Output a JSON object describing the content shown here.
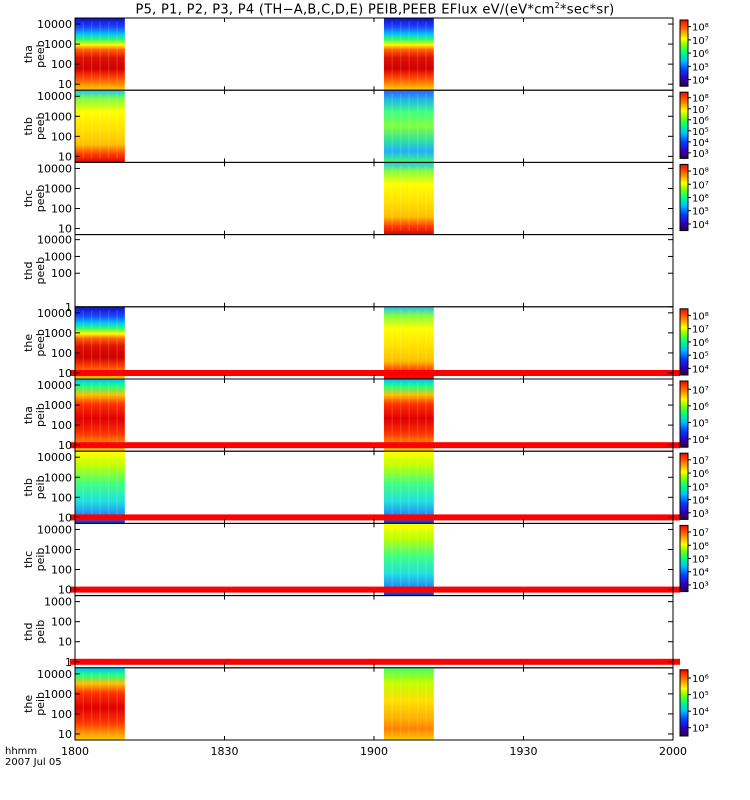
{
  "title_prefix": "P5, P1, P2, P3, P4 (TH−A,B,C,D,E) PEIB,PEEB EFlux eV/(eV*cm",
  "title_sup": "2",
  "title_suffix": "*sec*sr)",
  "xaxis": {
    "corner_label": "hhmm",
    "date": "2007 Jul 05",
    "tick_labels": [
      "1800",
      "1830",
      "1900",
      "1930",
      "2000"
    ]
  },
  "chart_data": {
    "type": "heatmap",
    "x_range_minutes": [
      0,
      120
    ],
    "x_ticks_minutes": [
      0,
      30,
      60,
      90,
      120
    ],
    "panels": [
      {
        "probe": "tha",
        "product": "peeb",
        "yticks": [
          "10000",
          "1000",
          "100",
          "10"
        ],
        "yrange": [
          5,
          20000
        ],
        "colorbar": {
          "ticks": [
            "10⁴",
            "10⁵",
            "10⁶",
            "10⁷",
            "10⁸"
          ]
        },
        "blocks": [
          {
            "x0": 0,
            "x1": 10,
            "scheme": "e_red"
          },
          {
            "x0": 62,
            "x1": 72,
            "scheme": "e_red"
          }
        ],
        "flag_bar": false
      },
      {
        "probe": "thb",
        "product": "peeb",
        "yticks": [
          "10000",
          "1000",
          "100",
          "10"
        ],
        "yrange": [
          5,
          20000
        ],
        "colorbar": {
          "ticks": [
            "10³",
            "10⁴",
            "10⁵",
            "10⁶",
            "10⁷",
            "10⁸"
          ]
        },
        "blocks": [
          {
            "x0": 0,
            "x1": 10,
            "scheme": "e_yellow"
          },
          {
            "x0": 62,
            "x1": 72,
            "scheme": "e_green"
          }
        ],
        "flag_bar": false
      },
      {
        "probe": "thc",
        "product": "peeb",
        "yticks": [
          "10000",
          "1000",
          "100",
          "10"
        ],
        "yrange": [
          5,
          20000
        ],
        "colorbar": {
          "ticks": [
            "10⁴",
            "10⁵",
            "10⁶",
            "10⁷",
            "10⁸"
          ]
        },
        "blocks": [
          {
            "x0": 62,
            "x1": 72,
            "scheme": "e_yellow"
          }
        ],
        "flag_bar": false
      },
      {
        "probe": "thd",
        "product": "peeb",
        "yticks": [
          "10000",
          "1000",
          "100",
          "1"
        ],
        "yrange": [
          1,
          20000
        ],
        "colorbar": null,
        "blocks": [],
        "flag_bar": false
      },
      {
        "probe": "the",
        "product": "peeb",
        "yticks": [
          "10000",
          "1000",
          "100",
          "10"
        ],
        "yrange": [
          5,
          20000
        ],
        "colorbar": {
          "ticks": [
            "10⁴",
            "10⁵",
            "10⁶",
            "10⁷",
            "10⁸"
          ]
        },
        "blocks": [
          {
            "x0": 0,
            "x1": 10,
            "scheme": "e_red"
          },
          {
            "x0": 62,
            "x1": 72,
            "scheme": "e_yellow"
          }
        ],
        "flag_bar": true
      },
      {
        "probe": "tha",
        "product": "peib",
        "yticks": [
          "10000",
          "1000",
          "100",
          "10"
        ],
        "yrange": [
          5,
          20000
        ],
        "colorbar": {
          "ticks": [
            "10⁴",
            "10⁵",
            "10⁶",
            "10⁷"
          ]
        },
        "blocks": [
          {
            "x0": 0,
            "x1": 10,
            "scheme": "i_red"
          },
          {
            "x0": 62,
            "x1": 72,
            "scheme": "i_red"
          }
        ],
        "flag_bar": true
      },
      {
        "probe": "thb",
        "product": "peib",
        "yticks": [
          "10000",
          "1000",
          "100",
          "10"
        ],
        "yrange": [
          5,
          20000
        ],
        "colorbar": {
          "ticks": [
            "10³",
            "10⁴",
            "10⁵",
            "10⁶",
            "10⁷"
          ]
        },
        "blocks": [
          {
            "x0": 0,
            "x1": 10,
            "scheme": "i_green"
          },
          {
            "x0": 62,
            "x1": 72,
            "scheme": "i_green"
          }
        ],
        "flag_bar": true
      },
      {
        "probe": "thc",
        "product": "peib",
        "yticks": [
          "10000",
          "1000",
          "100",
          "10"
        ],
        "yrange": [
          5,
          20000
        ],
        "colorbar": {
          "ticks": [
            "10³",
            "10⁴",
            "10⁵",
            "10⁶",
            "10⁷"
          ]
        },
        "blocks": [
          {
            "x0": 62,
            "x1": 72,
            "scheme": "i_green"
          }
        ],
        "flag_bar": true
      },
      {
        "probe": "thd",
        "product": "peib",
        "yticks": [
          "1000",
          "100",
          "10",
          "1"
        ],
        "yrange": [
          0.5,
          2000
        ],
        "colorbar": null,
        "blocks": [],
        "flag_bar": true
      },
      {
        "probe": "the",
        "product": "peib",
        "yticks": [
          "10000",
          "1000",
          "100",
          "10"
        ],
        "yrange": [
          5,
          20000
        ],
        "colorbar": {
          "ticks": [
            "10³",
            "10⁴",
            "10⁵",
            "10⁶"
          ]
        },
        "blocks": [
          {
            "x0": 0,
            "x1": 10,
            "scheme": "i_red"
          },
          {
            "x0": 62,
            "x1": 72,
            "scheme": "i_yellow"
          }
        ],
        "flag_bar": false
      }
    ]
  }
}
